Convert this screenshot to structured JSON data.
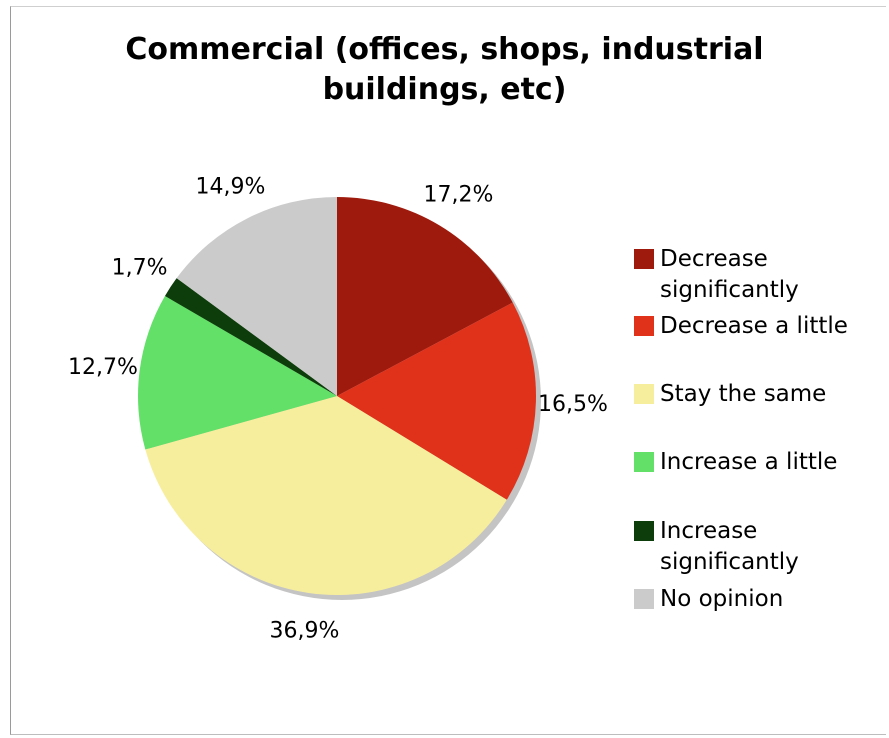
{
  "chart_data": {
    "type": "pie",
    "title": "Commercial (offices, shops, industrial buildings, etc)",
    "title_lines": [
      "Commercial (offices, shops, industrial",
      "buildings, etc)"
    ],
    "slices": [
      {
        "name": "Decrease significantly",
        "value": 17.2,
        "label": "17,2%",
        "color": "#9e1a0d"
      },
      {
        "name": "Decrease a little",
        "value": 16.5,
        "label": "16,5%",
        "color": "#e0321b"
      },
      {
        "name": "Stay the same",
        "value": 36.9,
        "label": "36,9%",
        "color": "#f7ee9d"
      },
      {
        "name": "Increase a little",
        "value": 12.7,
        "label": "12,7%",
        "color": "#62e067"
      },
      {
        "name": "Increase significantly",
        "value": 1.7,
        "label": "1,7%",
        "color": "#0c3d0a"
      },
      {
        "name": "No opinion",
        "value": 14.9,
        "label": "14,9%",
        "color": "#cbcbcb"
      }
    ],
    "legend": {
      "placement": "right",
      "entries": [
        {
          "lines": [
            "Decrease",
            "significantly"
          ],
          "color": "#9e1a0d"
        },
        {
          "lines": [
            "Decrease a little"
          ],
          "color": "#e0321b"
        },
        {
          "lines": [
            "Stay the same"
          ],
          "color": "#f7ee9d"
        },
        {
          "lines": [
            "Increase a little"
          ],
          "color": "#62e067"
        },
        {
          "lines": [
            "Increase",
            "significantly"
          ],
          "color": "#0c3d0a"
        },
        {
          "lines": [
            "No opinion"
          ],
          "color": "#cbcbcb"
        }
      ]
    }
  }
}
